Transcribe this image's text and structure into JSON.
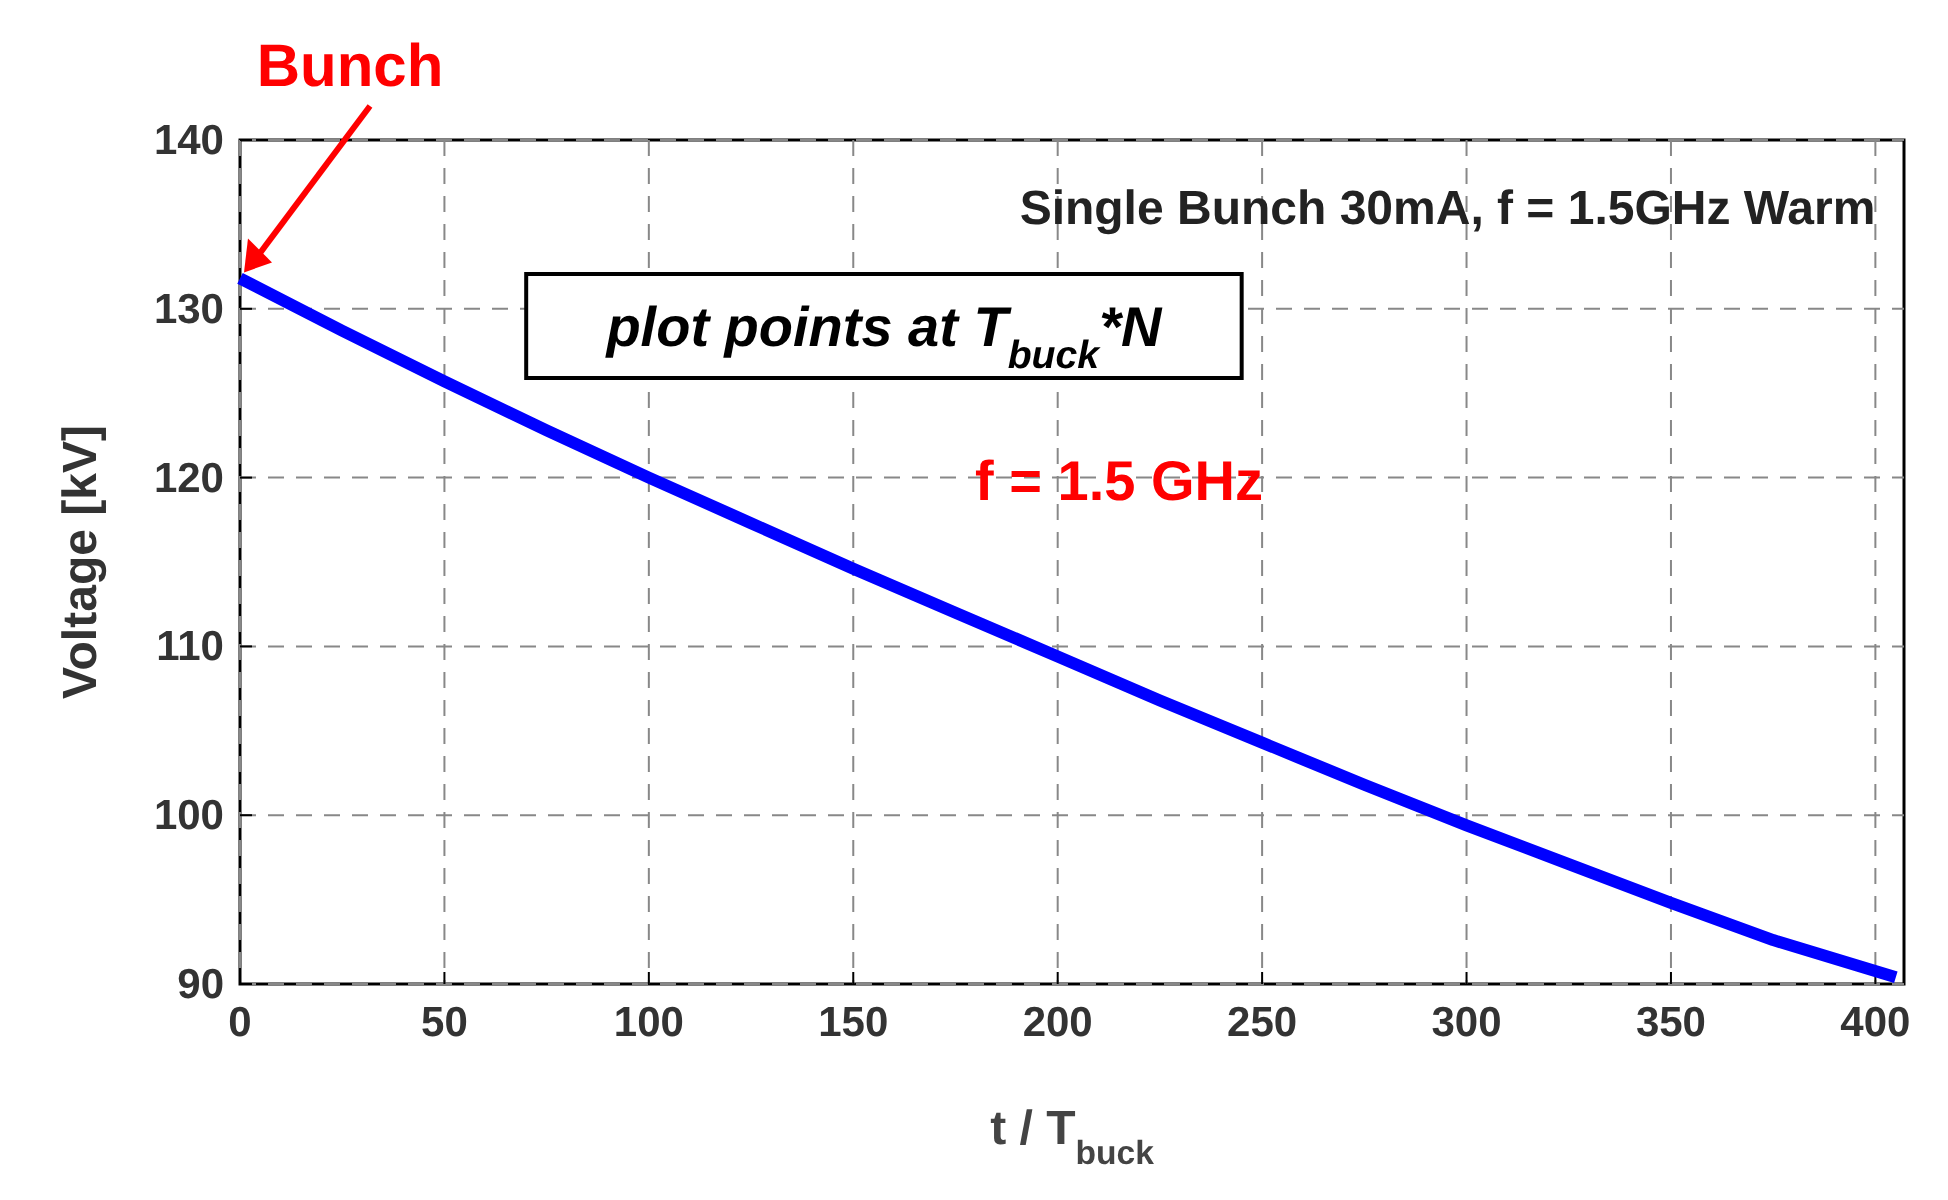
{
  "chart_data": {
    "type": "line",
    "title": "Single Bunch 30mA,  f = 1.5GHz Warm",
    "xlabel": "t / T$_{buck}$",
    "ylabel": "Voltage [kV]",
    "x": [
      0,
      25,
      50,
      75,
      100,
      125,
      150,
      175,
      200,
      225,
      250,
      275,
      300,
      325,
      350,
      375,
      405
    ],
    "series": [
      {
        "color": "#0000ff",
        "values": [
          131.8,
          128.7,
          125.7,
          122.8,
          120,
          117.3,
          114.6,
          112,
          109.4,
          106.8,
          104.3,
          101.8,
          99.4,
          97.1,
          94.8,
          92.6,
          90.4
        ]
      }
    ],
    "xlim": [
      0,
      407
    ],
    "xticks": [
      0,
      50,
      100,
      150,
      200,
      250,
      300,
      350,
      400
    ],
    "ylim": [
      90,
      140
    ],
    "yticks": [
      90,
      100,
      110,
      120,
      130,
      140
    ],
    "grid": true,
    "line_style": "solid",
    "marker": "none",
    "annotations": [
      {
        "text": "Bunch",
        "x": 0,
        "y": 131.8
      },
      "plot points at T$_{buck}$*N",
      "f = 1.5 GHz"
    ]
  }
}
